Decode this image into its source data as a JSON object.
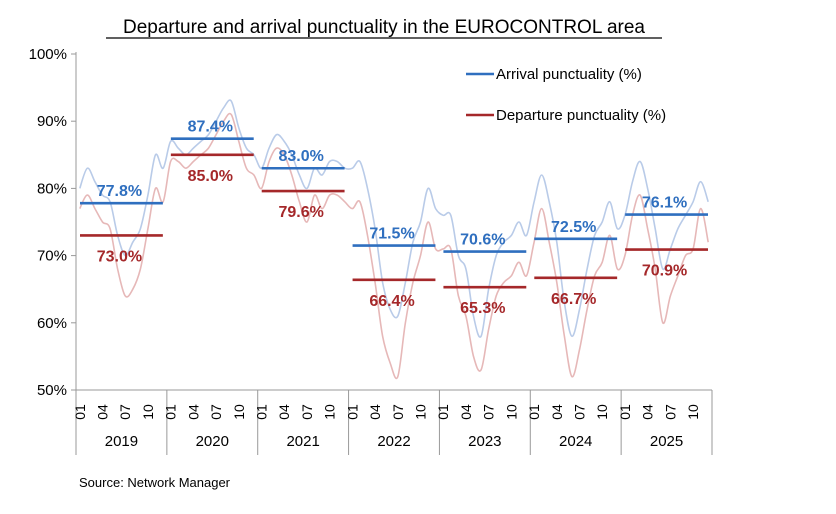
{
  "chart_data": {
    "type": "line",
    "title": "Departure and arrival punctuality in the EUROCONTROL area",
    "source": "Source: Network Manager",
    "ylim": [
      50,
      100
    ],
    "y_ticks": [
      "50%",
      "60%",
      "70%",
      "80%",
      "90%",
      "100%"
    ],
    "y_tick_values": [
      50,
      60,
      70,
      80,
      90,
      100
    ],
    "month_ticks": [
      "01",
      "04",
      "07",
      "10"
    ],
    "years": [
      "2019",
      "2020",
      "2021",
      "2022",
      "2023",
      "2024",
      "2025"
    ],
    "legend_position": "top-right",
    "series": [
      {
        "name": "Arrival punctuality (%)",
        "color": "#2f6fbf",
        "light_color": "#b9cbe8",
        "annual_average": [
          77.8,
          87.4,
          83.0,
          71.5,
          70.6,
          72.5,
          76.1
        ],
        "labels": [
          "77.8%",
          "87.4%",
          "83.0%",
          "71.5%",
          "70.6%",
          "72.5%",
          "76.1%"
        ],
        "monthly": [
          80,
          83,
          81,
          79,
          78,
          73,
          70,
          72,
          74,
          79,
          85,
          83,
          87,
          86,
          85,
          86,
          87,
          88,
          90,
          92,
          93,
          89,
          86,
          85,
          83,
          86,
          88,
          87,
          85,
          82,
          80,
          83,
          82,
          84,
          84,
          83,
          83,
          84,
          80,
          74,
          66,
          62,
          61,
          66,
          72,
          75,
          80,
          77,
          76,
          76,
          70,
          68,
          61,
          58,
          65,
          70,
          72,
          73,
          75,
          73,
          78,
          82,
          78,
          72,
          63,
          58,
          62,
          68,
          73,
          75,
          78,
          74,
          76,
          81,
          84,
          80,
          74,
          68,
          71,
          74,
          76,
          78,
          81,
          78
        ]
      },
      {
        "name": "Departure punctuality (%)",
        "color": "#a5282a",
        "light_color": "#e6b8b8",
        "annual_average": [
          73.0,
          85.0,
          79.6,
          66.4,
          65.3,
          66.7,
          70.9
        ],
        "labels": [
          "73.0%",
          "85.0%",
          "79.6%",
          "66.4%",
          "65.3%",
          "66.7%",
          "70.9%"
        ],
        "monthly": [
          77,
          79,
          77,
          75,
          74,
          68,
          64,
          65,
          68,
          74,
          80,
          78,
          84,
          84,
          83,
          84,
          85,
          86,
          88,
          90,
          91,
          87,
          83,
          82,
          80,
          84,
          86,
          85,
          82,
          78,
          75,
          79,
          77,
          79,
          79,
          78,
          77,
          78,
          73,
          66,
          58,
          54,
          52,
          60,
          66,
          70,
          75,
          71,
          71,
          71,
          64,
          61,
          55,
          53,
          59,
          64,
          66,
          67,
          69,
          67,
          72,
          77,
          72,
          66,
          58,
          52,
          56,
          62,
          67,
          69,
          73,
          68,
          70,
          76,
          79,
          74,
          68,
          60,
          64,
          67,
          70,
          71,
          77,
          72
        ]
      }
    ]
  }
}
